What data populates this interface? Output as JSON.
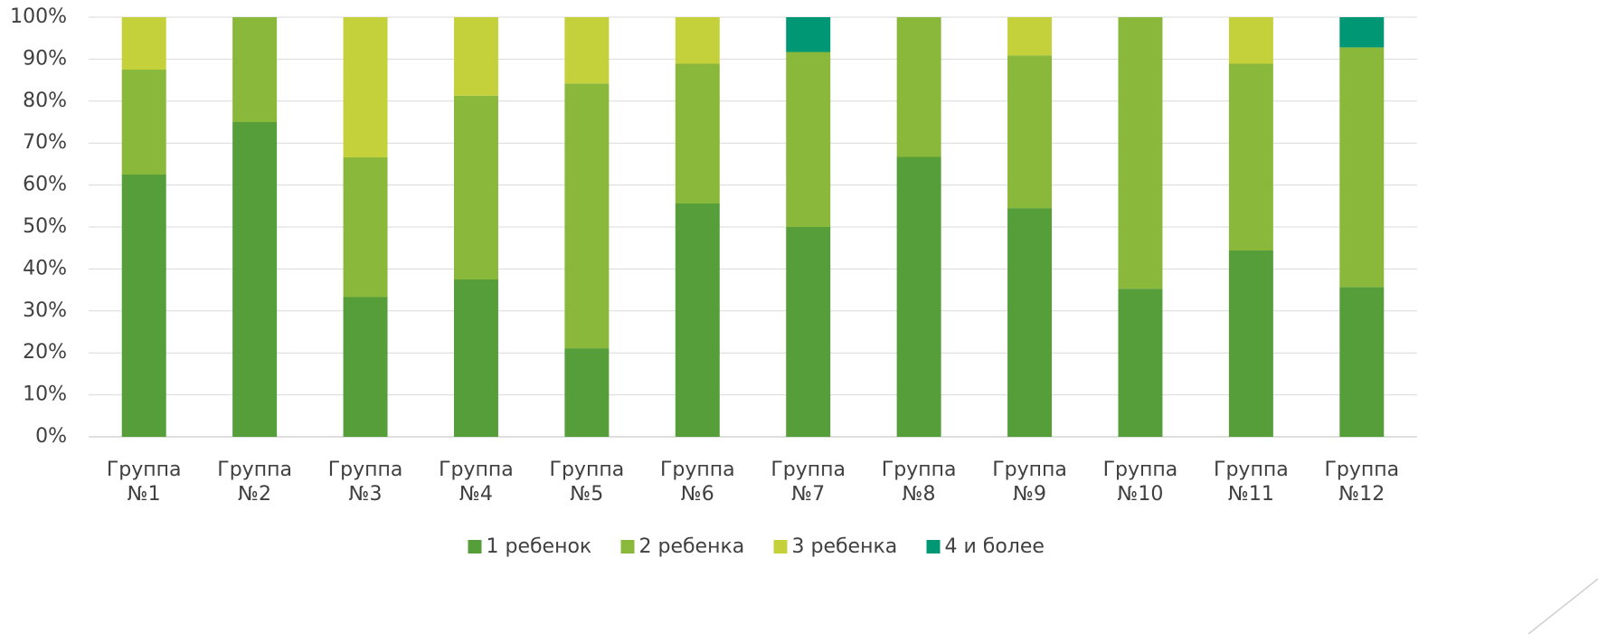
{
  "chart_data": {
    "type": "stacked_bar",
    "categories": [
      "Группа №1",
      "Группа №2",
      "Группа №3",
      "Группа №4",
      "Группа №5",
      "Группа №6",
      "Группа №7",
      "Группа №8",
      "Группа №9",
      "Группа №10",
      "Группа №11",
      "Группа №12"
    ],
    "series": [
      {
        "name": "1 ребенок",
        "color": "#559e3a",
        "values": [
          62.5,
          75,
          33.3,
          37.5,
          21.1,
          55.6,
          50,
          66.7,
          54.5,
          35.3,
          44.4,
          35.7
        ]
      },
      {
        "name": "2 ребенка",
        "color": "#8ab83a",
        "values": [
          25,
          25,
          33.3,
          43.8,
          63.1,
          33.3,
          41.7,
          33.3,
          36.4,
          64.7,
          44.5,
          57.1
        ]
      },
      {
        "name": "3 ребенка",
        "color": "#c5d13a",
        "values": [
          12.5,
          0,
          33.4,
          18.7,
          15.8,
          11.1,
          0,
          0,
          9.1,
          0,
          11.1,
          0
        ]
      },
      {
        "name": "4 и более",
        "color": "#009874",
        "values": [
          0,
          0,
          0,
          0,
          0,
          0,
          8.3,
          0,
          0,
          0,
          0,
          7.2
        ]
      }
    ],
    "ylim": [
      0,
      100
    ],
    "yticks": [
      {
        "value": 0,
        "label": "0%"
      },
      {
        "value": 10,
        "label": "10%"
      },
      {
        "value": 20,
        "label": "20%"
      },
      {
        "value": 30,
        "label": "30%"
      },
      {
        "value": 40,
        "label": "40%"
      },
      {
        "value": 50,
        "label": "50%"
      },
      {
        "value": 60,
        "label": "60%"
      },
      {
        "value": 70,
        "label": "70%"
      },
      {
        "value": 80,
        "label": "80%"
      },
      {
        "value": 90,
        "label": "90%"
      },
      {
        "value": 100,
        "label": "100%"
      }
    ],
    "grid": true,
    "legend": "bottom"
  }
}
